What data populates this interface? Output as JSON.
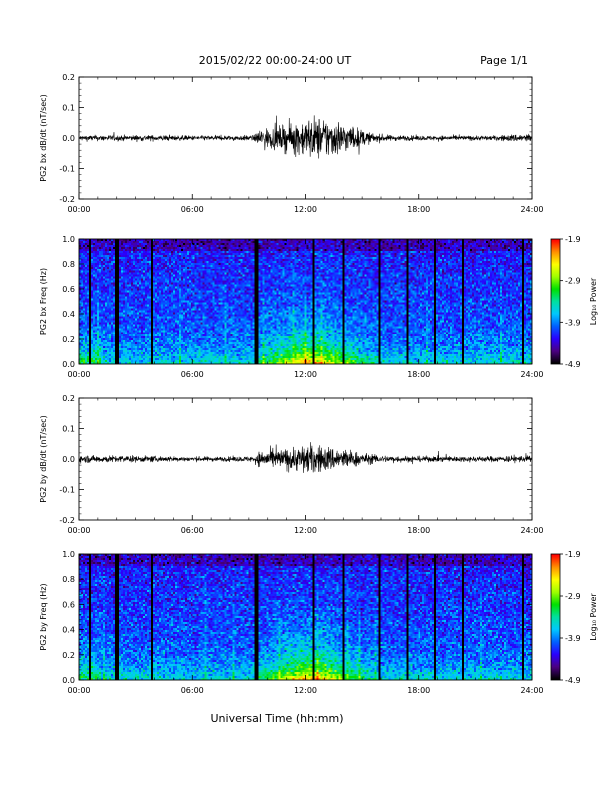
{
  "header": {
    "date_range": "2015/02/22  00:00-24:00 UT",
    "page": "Page 1/1"
  },
  "footer": {
    "xlabel": "Universal Time (hh:mm)"
  },
  "colorbar": {
    "label": "Log₁₀ Power",
    "ticks": [
      "-1.9",
      "-2.9",
      "-3.9",
      "-4.9"
    ],
    "range": [
      -4.9,
      -1.9
    ],
    "colors": [
      "#000000",
      "#4b0082",
      "#2a00ff",
      "#0060ff",
      "#00c8ff",
      "#00e0a0",
      "#00e000",
      "#a0ff00",
      "#ffff00",
      "#ff9000",
      "#ff0000"
    ]
  },
  "chart_data": [
    {
      "type": "line",
      "ylabel": "PG2 bx dB/dt (nT/sec)",
      "xlim": [
        0,
        24
      ],
      "ylim": [
        -0.2,
        0.2
      ],
      "xticks": [
        "00:00",
        "06:00",
        "12:00",
        "18:00",
        "24:00"
      ],
      "yticks": [
        "0.2",
        "0.1",
        "0.0",
        "-0.1",
        "-0.2"
      ],
      "envelope": {
        "x": [
          0,
          2,
          4,
          6,
          8,
          9.3,
          9.6,
          10.5,
          11.5,
          12.5,
          13.5,
          14.5,
          15.5,
          16.5,
          18,
          20,
          22,
          23.8,
          24
        ],
        "amplitude": [
          0.012,
          0.012,
          0.012,
          0.01,
          0.01,
          0.012,
          0.04,
          0.045,
          0.07,
          0.09,
          0.08,
          0.05,
          0.02,
          0.012,
          0.01,
          0.01,
          0.01,
          0.02,
          0.012
        ]
      }
    },
    {
      "type": "heatmap",
      "ylabel": "PG2 bx Freq (Hz)",
      "xlim": [
        0,
        24
      ],
      "ylim": [
        0.0,
        1.0
      ],
      "xticks": [
        "00:00",
        "06:00",
        "12:00",
        "18:00",
        "24:00"
      ],
      "yticks": [
        "1.0",
        "0.8",
        "0.6",
        "0.4",
        "0.2",
        "0.0"
      ],
      "zlim": [
        -4.9,
        -1.9
      ],
      "data_gaps_hours": [
        0.55,
        2.0,
        3.9,
        9.4,
        12.45,
        14.0,
        15.9,
        17.35,
        18.85,
        20.35,
        23.5
      ]
    },
    {
      "type": "line",
      "ylabel": "PG2 by dB/dt (nT/sec)",
      "xlim": [
        0,
        24
      ],
      "ylim": [
        -0.2,
        0.2
      ],
      "xticks": [
        "00:00",
        "06:00",
        "12:00",
        "18:00",
        "24:00"
      ],
      "yticks": [
        "0.2",
        "0.1",
        "0.0",
        "-0.1",
        "-0.2"
      ],
      "envelope": {
        "x": [
          0,
          2,
          4,
          6,
          8,
          9.3,
          9.6,
          10.5,
          11.5,
          12.0,
          13.0,
          14.0,
          15.0,
          16.0,
          18,
          20,
          22,
          23.8,
          24
        ],
        "amplitude": [
          0.015,
          0.015,
          0.012,
          0.01,
          0.01,
          0.012,
          0.035,
          0.04,
          0.05,
          0.065,
          0.055,
          0.045,
          0.025,
          0.015,
          0.012,
          0.012,
          0.012,
          0.015,
          0.012
        ]
      }
    },
    {
      "type": "heatmap",
      "ylabel": "PG2 by Freq (Hz)",
      "xlim": [
        0,
        24
      ],
      "ylim": [
        0.0,
        1.0
      ],
      "xticks": [
        "00:00",
        "06:00",
        "12:00",
        "18:00",
        "24:00"
      ],
      "yticks": [
        "1.0",
        "0.8",
        "0.6",
        "0.4",
        "0.2",
        "0.0"
      ],
      "zlim": [
        -4.9,
        -1.9
      ],
      "data_gaps_hours": [
        0.55,
        2.0,
        3.9,
        9.4,
        12.45,
        14.0,
        15.9,
        17.35,
        18.85,
        20.35,
        23.5
      ]
    }
  ]
}
